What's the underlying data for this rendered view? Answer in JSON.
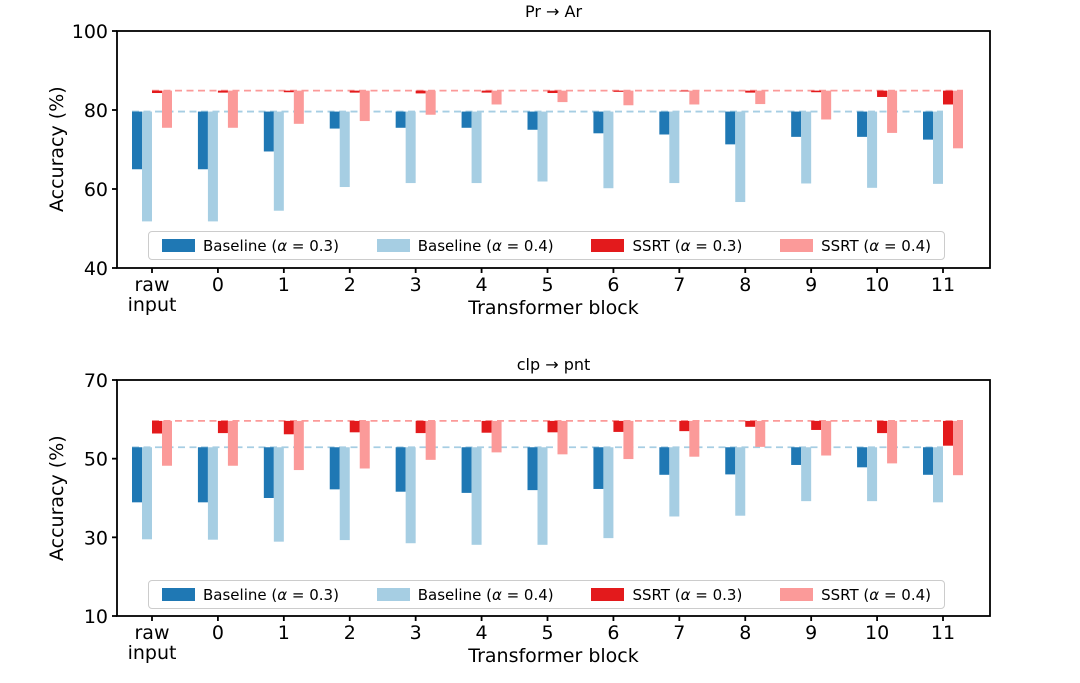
{
  "figure": {
    "background": "#ffffff",
    "palette": {
      "baseline_03": "#1f78b4",
      "baseline_04": "#a6cee3",
      "ssrt_03": "#e31a1c",
      "ssrt_04": "#fb9a99"
    }
  },
  "chart_data": [
    {
      "type": "bar",
      "title": "Pr → Ar",
      "xlabel": "Transformer block",
      "ylabel": "Accuracy (%)",
      "categories": [
        "raw\ninput",
        "0",
        "1",
        "2",
        "3",
        "4",
        "5",
        "6",
        "7",
        "8",
        "9",
        "10",
        "11"
      ],
      "ylim": [
        40,
        100
      ],
      "yticks": [
        40,
        60,
        80,
        100
      ],
      "grid": false,
      "legend_position": "lower center",
      "bar_style": "hanging (bars drop from clean-accuracy reference line down to corrupted accuracy)",
      "reference_lines": [
        {
          "name": "Baseline clean accuracy",
          "value": 79.6,
          "color": "#a6cee3",
          "style": "dashed"
        },
        {
          "name": "SSRT clean accuracy",
          "value": 84.9,
          "color": "#fb9a99",
          "style": "dashed"
        }
      ],
      "series": [
        {
          "name": "Baseline (α = 0.3)",
          "color": "#1f78b4",
          "ref_index": 0,
          "values": [
            65.0,
            65.0,
            69.5,
            75.3,
            75.5,
            75.5,
            75.0,
            74.1,
            73.8,
            71.3,
            73.2,
            73.2,
            72.5
          ]
        },
        {
          "name": "Baseline (α = 0.4)",
          "color": "#a6cee3",
          "ref_index": 0,
          "values": [
            51.8,
            51.8,
            54.5,
            60.5,
            61.5,
            61.5,
            61.9,
            60.2,
            61.5,
            56.7,
            61.4,
            60.3,
            61.3
          ]
        },
        {
          "name": "SSRT (α = 0.3)",
          "color": "#e31a1c",
          "ref_index": 1,
          "values": [
            84.3,
            84.4,
            84.5,
            84.4,
            84.2,
            84.4,
            84.3,
            84.6,
            84.7,
            84.4,
            84.5,
            83.3,
            81.4
          ]
        },
        {
          "name": "SSRT (α = 0.4)",
          "color": "#fb9a99",
          "ref_index": 1,
          "values": [
            75.5,
            75.5,
            76.5,
            77.2,
            78.8,
            81.4,
            82.0,
            81.2,
            81.4,
            81.5,
            77.6,
            74.2,
            70.3
          ]
        }
      ]
    },
    {
      "type": "bar",
      "title": "clp → pnt",
      "xlabel": "Transformer block",
      "ylabel": "Accuracy (%)",
      "categories": [
        "raw\ninput",
        "0",
        "1",
        "2",
        "3",
        "4",
        "5",
        "6",
        "7",
        "8",
        "9",
        "10",
        "11"
      ],
      "ylim": [
        10,
        70
      ],
      "yticks": [
        10,
        30,
        50,
        70
      ],
      "grid": false,
      "legend_position": "lower center",
      "bar_style": "hanging (bars drop from clean-accuracy reference line down to corrupted accuracy)",
      "reference_lines": [
        {
          "name": "Baseline clean accuracy",
          "value": 52.9,
          "color": "#a6cee3",
          "style": "dashed"
        },
        {
          "name": "SSRT clean accuracy",
          "value": 59.6,
          "color": "#fb9a99",
          "style": "dashed"
        }
      ],
      "series": [
        {
          "name": "Baseline (α = 0.3)",
          "color": "#1f78b4",
          "ref_index": 0,
          "values": [
            38.9,
            38.9,
            40.0,
            42.2,
            41.6,
            41.3,
            42.0,
            42.3,
            45.9,
            46.0,
            48.4,
            47.8,
            45.9
          ]
        },
        {
          "name": "Baseline (α = 0.4)",
          "color": "#a6cee3",
          "ref_index": 0,
          "values": [
            29.5,
            29.4,
            28.9,
            29.3,
            28.5,
            28.1,
            28.1,
            29.8,
            35.3,
            35.5,
            39.2,
            39.2,
            38.9
          ]
        },
        {
          "name": "SSRT (α = 0.3)",
          "color": "#e31a1c",
          "ref_index": 1,
          "values": [
            56.4,
            56.5,
            56.2,
            56.7,
            56.5,
            56.6,
            56.7,
            56.8,
            57.0,
            58.1,
            57.3,
            56.5,
            53.3
          ]
        },
        {
          "name": "SSRT (α = 0.4)",
          "color": "#fb9a99",
          "ref_index": 1,
          "values": [
            48.2,
            48.2,
            47.1,
            47.5,
            49.7,
            51.6,
            51.1,
            49.9,
            50.5,
            53.0,
            50.8,
            48.8,
            45.8
          ]
        }
      ]
    }
  ]
}
